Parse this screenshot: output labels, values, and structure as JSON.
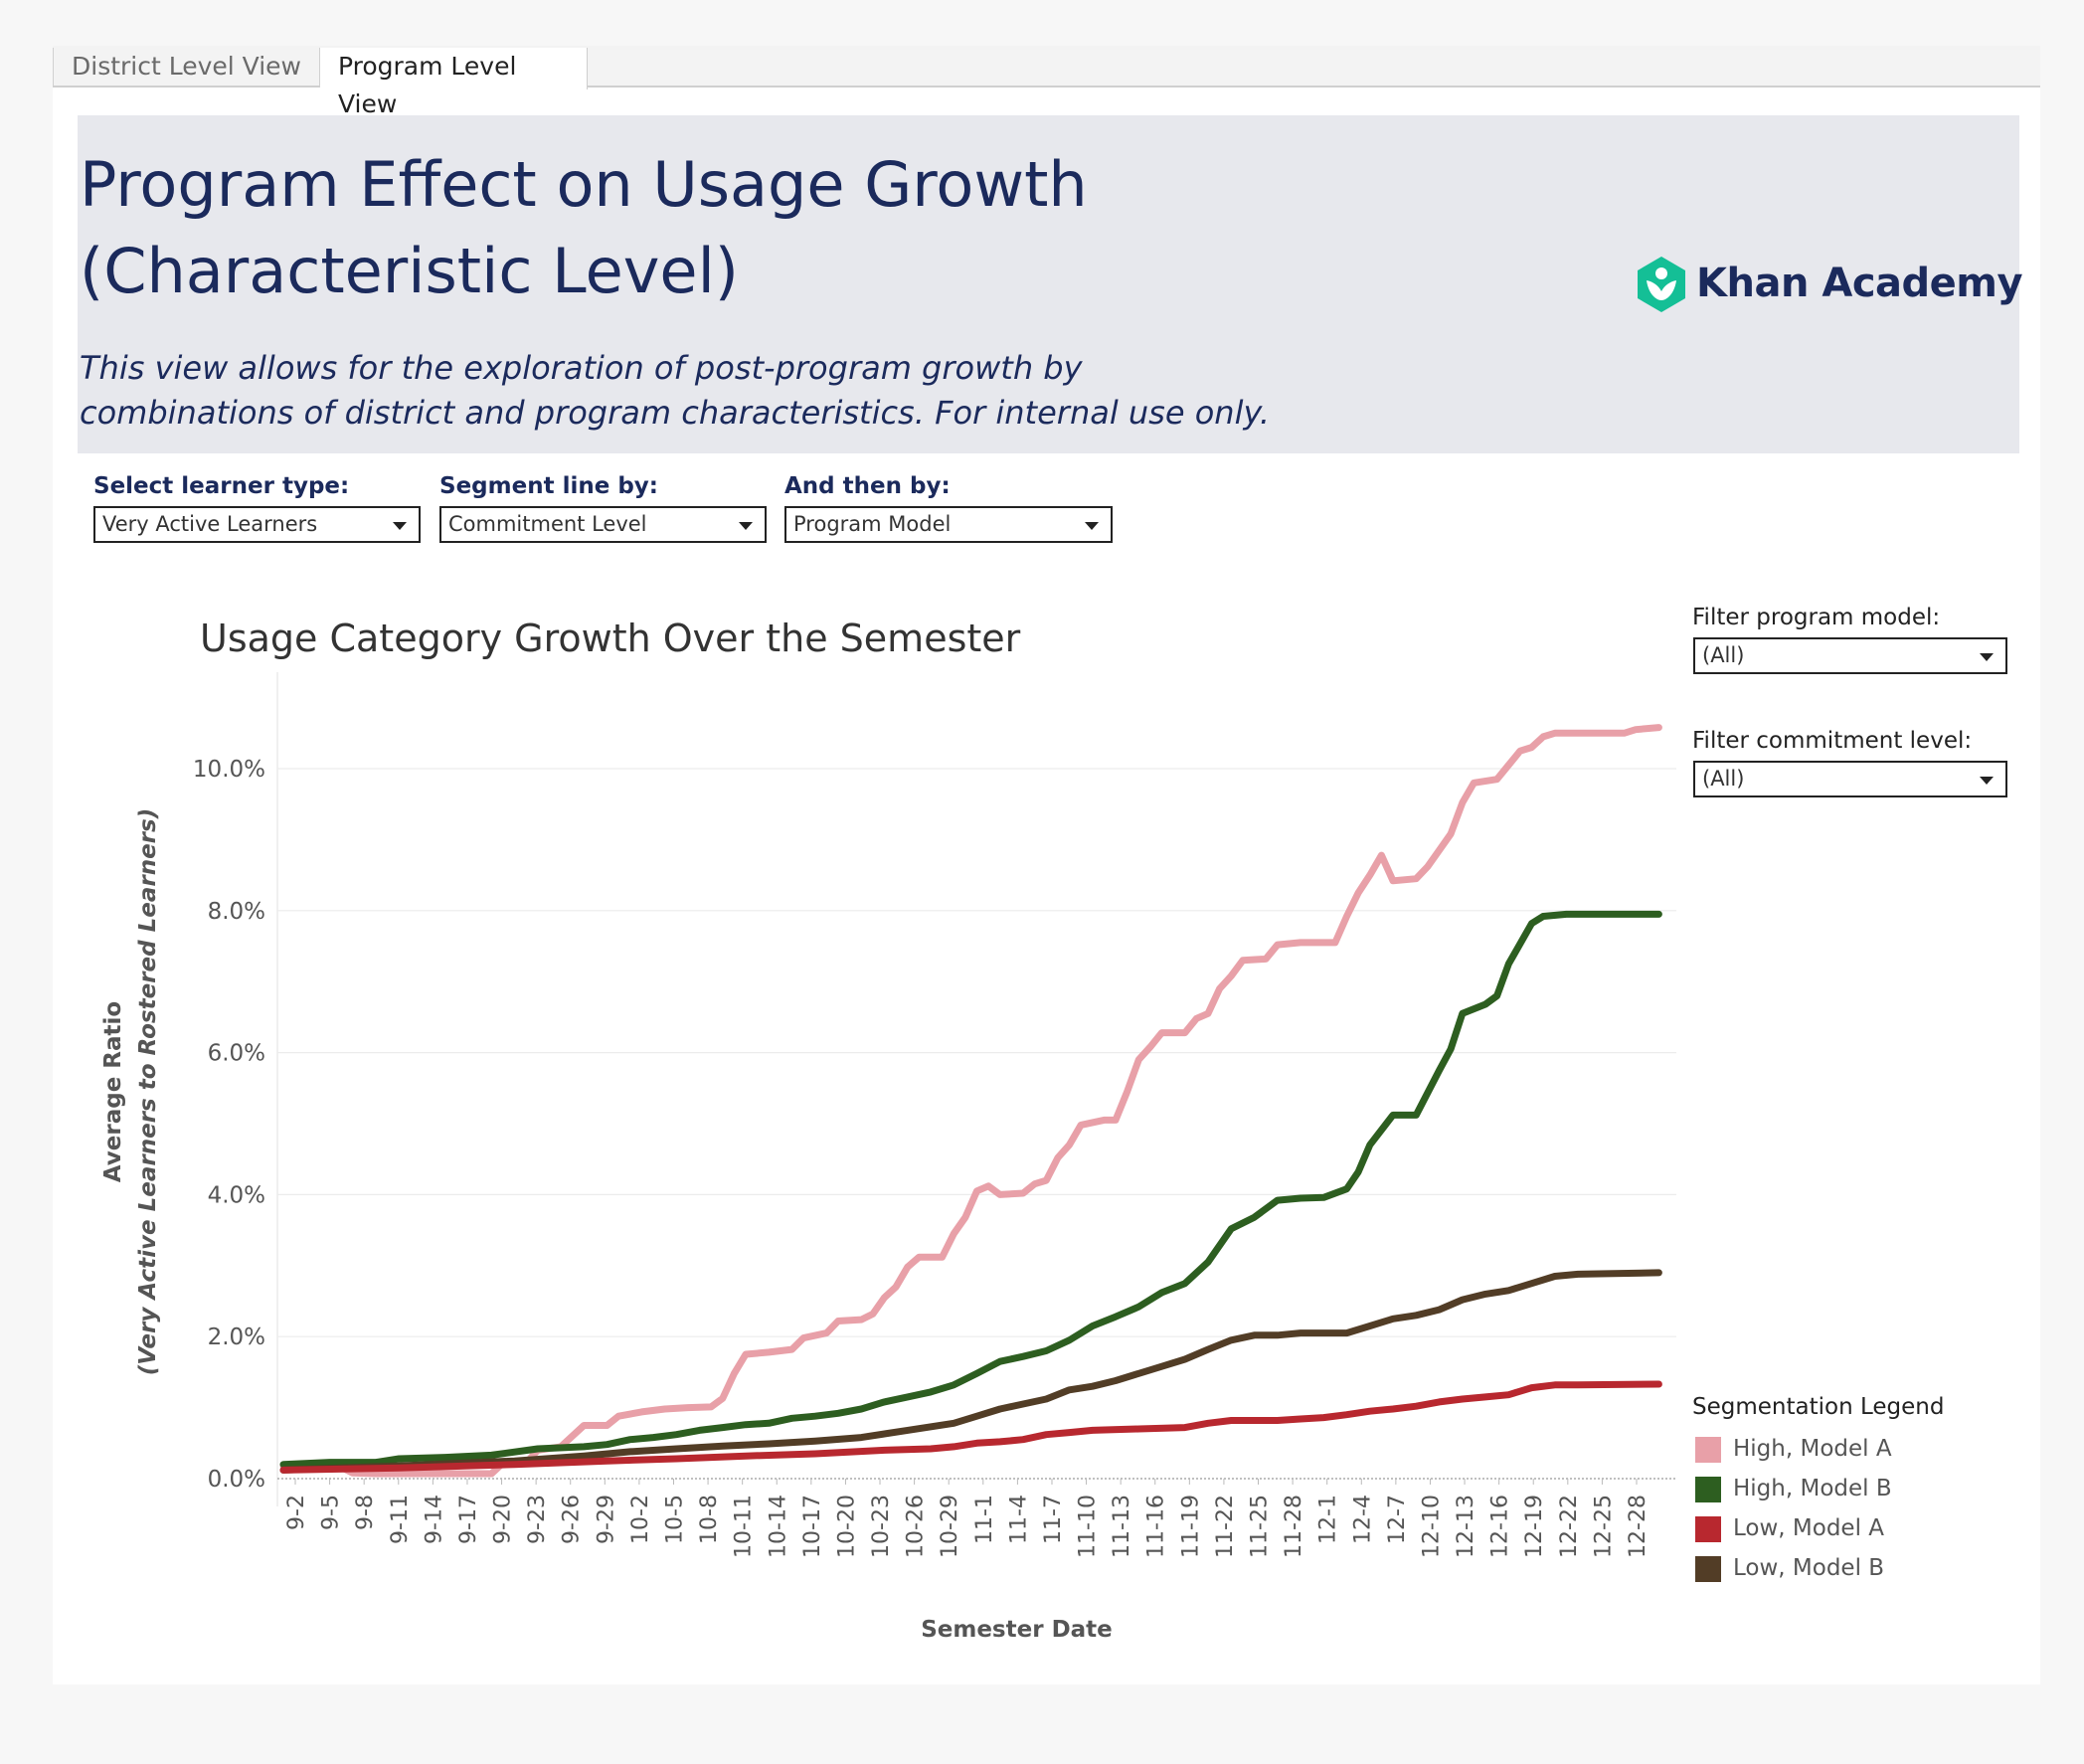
{
  "tabs": [
    {
      "label": "District Level View"
    },
    {
      "label": "Program Level View"
    }
  ],
  "header": {
    "title_line1": "Program Effect on Usage Growth",
    "title_line2": "(Characteristic Level)",
    "subtitle_line1": "This view allows for the exploration of post-program growth by",
    "subtitle_line2": "combinations of  district and program characteristics. For internal use only.",
    "logo_text": "Khan Academy",
    "logo_color": "#14bf96"
  },
  "controls": {
    "learner_type": {
      "label": "Select learner type:",
      "value": "Very Active Learners"
    },
    "segment_by": {
      "label": "Segment line by:",
      "value": "Commitment Level"
    },
    "then_by": {
      "label": "And then by:",
      "value": "Program Model"
    },
    "filter_program_model": {
      "label": "Filter program model:",
      "value": "(All)"
    },
    "filter_commitment_level": {
      "label": "Filter commitment level:",
      "value": "(All)"
    }
  },
  "legend": {
    "title": "Segmentation Legend",
    "items": [
      {
        "label": "High, Model A",
        "color": "#e8a0a8"
      },
      {
        "label": "High, Model B",
        "color": "#2d5e20"
      },
      {
        "label": "Low, Model A",
        "color": "#b8282f"
      },
      {
        "label": "Low, Model B",
        "color": "#523d26"
      }
    ]
  },
  "chart_data": {
    "type": "line",
    "title": "Usage Category Growth Over the Semester",
    "xlabel": "Semester Date",
    "ylabel": "Average Ratio",
    "ylabel_sub": "(Very Active Learners to Rostered Learners)",
    "ylim": [
      0,
      0.11
    ],
    "yticks": [
      "0.0%",
      "2.0%",
      "4.0%",
      "6.0%",
      "8.0%",
      "10.0%"
    ],
    "ytick_values": [
      0,
      0.02,
      0.04,
      0.06,
      0.08,
      0.1
    ],
    "grid": true,
    "legend_position": "right",
    "x_start_day": 0,
    "x_end_day": 120,
    "xticks": [
      "9-2",
      "9-5",
      "9-8",
      "9-11",
      "9-14",
      "9-17",
      "9-20",
      "9-23",
      "9-26",
      "9-29",
      "10-2",
      "10-5",
      "10-8",
      "10-11",
      "10-14",
      "10-17",
      "10-20",
      "10-23",
      "10-26",
      "10-29",
      "11-1",
      "11-4",
      "11-7",
      "11-10",
      "11-13",
      "11-16",
      "11-19",
      "11-22",
      "11-25",
      "11-28",
      "12-1",
      "12-4",
      "12-7",
      "12-10",
      "12-13",
      "12-16",
      "12-19",
      "12-22",
      "12-25",
      "12-28"
    ],
    "series": [
      {
        "name": "High, Model A",
        "color": "#e8a0a8",
        "points": [
          [
            0,
            0.0018
          ],
          [
            3,
            0.0018
          ],
          [
            5,
            0.0016
          ],
          [
            6,
            0.0008
          ],
          [
            8,
            0.0007
          ],
          [
            15,
            0.0007
          ],
          [
            18,
            0.0007
          ],
          [
            19,
            0.0022
          ],
          [
            21,
            0.0022
          ],
          [
            22,
            0.004
          ],
          [
            24,
            0.0045
          ],
          [
            26,
            0.0075
          ],
          [
            28,
            0.0075
          ],
          [
            29,
            0.0088
          ],
          [
            31,
            0.0094
          ],
          [
            33,
            0.0098
          ],
          [
            35,
            0.01
          ],
          [
            37,
            0.0101
          ],
          [
            38,
            0.0113
          ],
          [
            39,
            0.0148
          ],
          [
            40,
            0.0175
          ],
          [
            42,
            0.0178
          ],
          [
            44,
            0.0182
          ],
          [
            45,
            0.0198
          ],
          [
            47,
            0.0205
          ],
          [
            48,
            0.0222
          ],
          [
            50,
            0.0224
          ],
          [
            51,
            0.0232
          ],
          [
            52,
            0.0255
          ],
          [
            53,
            0.027
          ],
          [
            54,
            0.0298
          ],
          [
            55,
            0.0312
          ],
          [
            57,
            0.0312
          ],
          [
            58,
            0.0345
          ],
          [
            59,
            0.0368
          ],
          [
            60,
            0.0405
          ],
          [
            61,
            0.0412
          ],
          [
            62,
            0.04
          ],
          [
            64,
            0.0402
          ],
          [
            65,
            0.0415
          ],
          [
            66,
            0.042
          ],
          [
            67,
            0.0452
          ],
          [
            68,
            0.047
          ],
          [
            69,
            0.0498
          ],
          [
            71,
            0.0505
          ],
          [
            72,
            0.0505
          ],
          [
            73,
            0.0545
          ],
          [
            74,
            0.059
          ],
          [
            75,
            0.0608
          ],
          [
            76,
            0.0628
          ],
          [
            78,
            0.0628
          ],
          [
            79,
            0.0648
          ],
          [
            80,
            0.0655
          ],
          [
            81,
            0.069
          ],
          [
            82,
            0.0708
          ],
          [
            83,
            0.073
          ],
          [
            85,
            0.0732
          ],
          [
            86,
            0.0752
          ],
          [
            88,
            0.0755
          ],
          [
            91,
            0.0755
          ],
          [
            92,
            0.0792
          ],
          [
            93,
            0.0825
          ],
          [
            94,
            0.085
          ],
          [
            95,
            0.0878
          ],
          [
            96,
            0.0842
          ],
          [
            98,
            0.0845
          ],
          [
            99,
            0.0862
          ],
          [
            100,
            0.0885
          ],
          [
            101,
            0.0908
          ],
          [
            102,
            0.0952
          ],
          [
            103,
            0.098
          ],
          [
            105,
            0.0985
          ],
          [
            106,
            0.1005
          ],
          [
            107,
            0.1025
          ],
          [
            108,
            0.103
          ],
          [
            109,
            0.1045
          ],
          [
            110,
            0.105
          ],
          [
            112,
            0.105
          ],
          [
            116,
            0.105
          ],
          [
            117,
            0.1055
          ],
          [
            119,
            0.1058
          ]
        ]
      },
      {
        "name": "High, Model B",
        "color": "#2d5e20",
        "points": [
          [
            0,
            0.002
          ],
          [
            4,
            0.0023
          ],
          [
            8,
            0.0023
          ],
          [
            10,
            0.0028
          ],
          [
            14,
            0.003
          ],
          [
            18,
            0.0033
          ],
          [
            22,
            0.0042
          ],
          [
            26,
            0.0045
          ],
          [
            28,
            0.0048
          ],
          [
            30,
            0.0055
          ],
          [
            32,
            0.0058
          ],
          [
            34,
            0.0062
          ],
          [
            36,
            0.0068
          ],
          [
            38,
            0.0072
          ],
          [
            40,
            0.0076
          ],
          [
            42,
            0.0078
          ],
          [
            44,
            0.0085
          ],
          [
            46,
            0.0088
          ],
          [
            48,
            0.0092
          ],
          [
            50,
            0.0098
          ],
          [
            52,
            0.0108
          ],
          [
            54,
            0.0115
          ],
          [
            56,
            0.0122
          ],
          [
            58,
            0.0132
          ],
          [
            60,
            0.0148
          ],
          [
            62,
            0.0165
          ],
          [
            64,
            0.0172
          ],
          [
            66,
            0.018
          ],
          [
            68,
            0.0195
          ],
          [
            70,
            0.0215
          ],
          [
            72,
            0.0228
          ],
          [
            74,
            0.0242
          ],
          [
            76,
            0.0262
          ],
          [
            78,
            0.0275
          ],
          [
            80,
            0.0305
          ],
          [
            82,
            0.0352
          ],
          [
            84,
            0.0368
          ],
          [
            86,
            0.0392
          ],
          [
            88,
            0.0395
          ],
          [
            90,
            0.0396
          ],
          [
            92,
            0.0408
          ],
          [
            93,
            0.0432
          ],
          [
            94,
            0.047
          ],
          [
            96,
            0.0512
          ],
          [
            98,
            0.0512
          ],
          [
            100,
            0.0575
          ],
          [
            101,
            0.0605
          ],
          [
            102,
            0.0655
          ],
          [
            104,
            0.0668
          ],
          [
            105,
            0.068
          ],
          [
            106,
            0.0725
          ],
          [
            108,
            0.0782
          ],
          [
            109,
            0.0792
          ],
          [
            111,
            0.0795
          ],
          [
            119,
            0.0795
          ]
        ]
      },
      {
        "name": "Low, Model A",
        "color": "#b8282f",
        "points": [
          [
            0,
            0.0012
          ],
          [
            10,
            0.0015
          ],
          [
            20,
            0.002
          ],
          [
            28,
            0.0025
          ],
          [
            34,
            0.0028
          ],
          [
            40,
            0.0032
          ],
          [
            46,
            0.0035
          ],
          [
            52,
            0.004
          ],
          [
            56,
            0.0042
          ],
          [
            58,
            0.0045
          ],
          [
            60,
            0.005
          ],
          [
            62,
            0.0052
          ],
          [
            64,
            0.0055
          ],
          [
            66,
            0.0062
          ],
          [
            68,
            0.0065
          ],
          [
            70,
            0.0068
          ],
          [
            74,
            0.007
          ],
          [
            78,
            0.0072
          ],
          [
            80,
            0.0078
          ],
          [
            82,
            0.0082
          ],
          [
            86,
            0.0082
          ],
          [
            88,
            0.0084
          ],
          [
            90,
            0.0086
          ],
          [
            92,
            0.009
          ],
          [
            94,
            0.0095
          ],
          [
            96,
            0.0098
          ],
          [
            98,
            0.0102
          ],
          [
            100,
            0.0108
          ],
          [
            102,
            0.0112
          ],
          [
            104,
            0.0115
          ],
          [
            106,
            0.0118
          ],
          [
            108,
            0.0128
          ],
          [
            110,
            0.0132
          ],
          [
            112,
            0.0132
          ],
          [
            119,
            0.0133
          ]
        ]
      },
      {
        "name": "Low, Model B",
        "color": "#523d26",
        "points": [
          [
            0,
            0.0012
          ],
          [
            10,
            0.0018
          ],
          [
            20,
            0.0025
          ],
          [
            26,
            0.0032
          ],
          [
            30,
            0.0038
          ],
          [
            34,
            0.0042
          ],
          [
            38,
            0.0046
          ],
          [
            42,
            0.0049
          ],
          [
            46,
            0.0053
          ],
          [
            50,
            0.0058
          ],
          [
            54,
            0.0068
          ],
          [
            58,
            0.0078
          ],
          [
            60,
            0.0088
          ],
          [
            62,
            0.0098
          ],
          [
            64,
            0.0105
          ],
          [
            66,
            0.0112
          ],
          [
            68,
            0.0125
          ],
          [
            70,
            0.013
          ],
          [
            72,
            0.0138
          ],
          [
            74,
            0.0148
          ],
          [
            76,
            0.0158
          ],
          [
            78,
            0.0168
          ],
          [
            80,
            0.0182
          ],
          [
            82,
            0.0195
          ],
          [
            84,
            0.0202
          ],
          [
            86,
            0.0202
          ],
          [
            88,
            0.0205
          ],
          [
            92,
            0.0205
          ],
          [
            94,
            0.0215
          ],
          [
            96,
            0.0225
          ],
          [
            98,
            0.023
          ],
          [
            100,
            0.0238
          ],
          [
            102,
            0.0252
          ],
          [
            104,
            0.026
          ],
          [
            106,
            0.0265
          ],
          [
            108,
            0.0275
          ],
          [
            110,
            0.0285
          ],
          [
            112,
            0.0288
          ],
          [
            119,
            0.029
          ]
        ]
      }
    ]
  }
}
